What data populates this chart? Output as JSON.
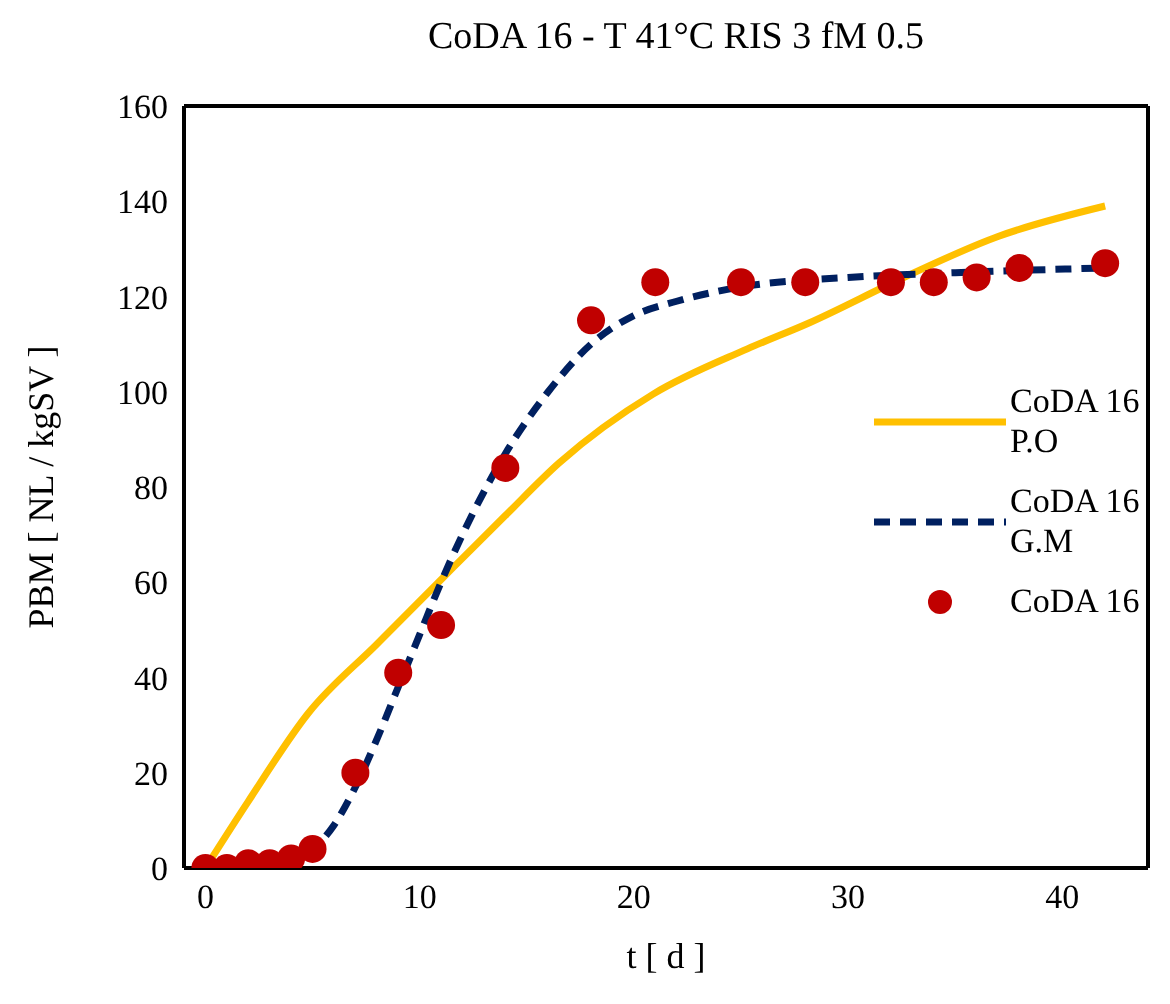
{
  "chart_data": {
    "type": "line",
    "title": "CoDA 16 - T 41°C RIS 3 fM 0.5",
    "xlabel": "t [ d ]",
    "ylabel": "PBM [ NL / kgSV ]",
    "xlim": [
      -1,
      44
    ],
    "xticks": [
      0,
      10,
      20,
      30,
      40
    ],
    "ylim": [
      0,
      160
    ],
    "yticks": [
      0,
      20,
      40,
      60,
      80,
      100,
      120,
      140,
      160
    ],
    "legend": "right",
    "series": [
      {
        "name": "CoDA 16 P.O",
        "color": "#ffc000",
        "line_style": "solid",
        "marker": "none",
        "x": [
          0,
          2,
          4.8,
          8,
          11.1,
          14,
          16.5,
          20.9,
          25.3,
          28.2,
          32.6,
          37,
          42
        ],
        "values": [
          0,
          14,
          32.5,
          47,
          61,
          74,
          85,
          99.5,
          109,
          114.5,
          124,
          132.6,
          139
        ]
      },
      {
        "name": "CoDA 16 G.M",
        "color": "#002060",
        "line_style": "dashed",
        "marker": "none",
        "x": [
          0,
          3,
          5,
          6,
          7,
          8,
          9,
          10,
          11,
          12,
          13,
          14,
          16,
          18,
          20,
          22,
          25,
          30,
          35,
          42
        ],
        "values": [
          0,
          0.5,
          4,
          9,
          17,
          27,
          38,
          49,
          60,
          70,
          79,
          87,
          100,
          110,
          116,
          119,
          122,
          124,
          125,
          126
        ]
      },
      {
        "name": "CoDA 16",
        "type": "scatter",
        "color": "#c00000",
        "marker": "circle",
        "x": [
          0,
          1,
          2,
          3,
          4,
          5,
          7,
          9,
          11,
          14,
          18,
          21,
          25,
          28,
          32,
          34,
          36,
          38,
          42
        ],
        "values": [
          0,
          0,
          1,
          1,
          2,
          4,
          20,
          41,
          51,
          84,
          115,
          123,
          123,
          123,
          123,
          123,
          124,
          126,
          127
        ]
      }
    ]
  }
}
